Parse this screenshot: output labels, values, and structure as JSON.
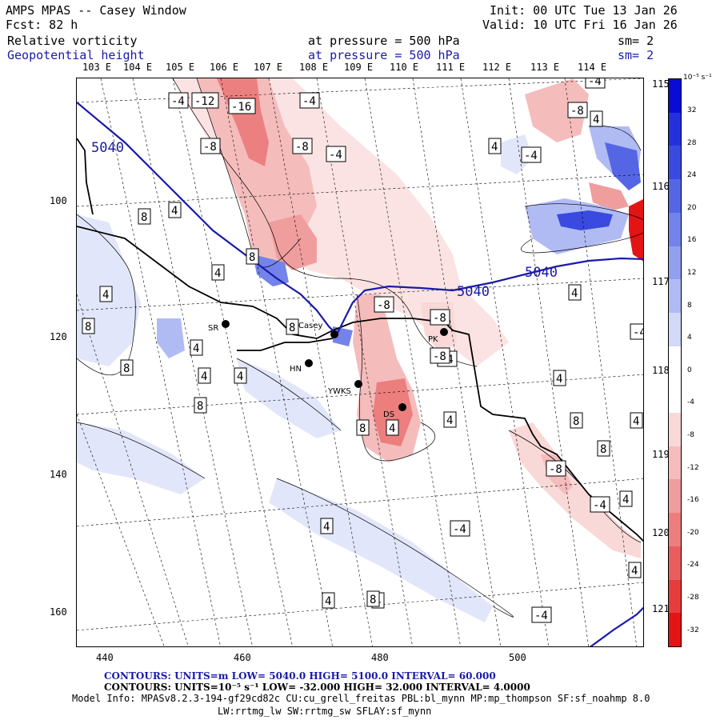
{
  "header": {
    "model_title": "AMPS MPAS -- Casey Window",
    "forecast": "Fcst:   82 h",
    "init": "Init: 00 UTC Tue 13 Jan 26",
    "valid": "Valid: 10 UTC Fri 16 Jan 26",
    "field1_name": "Relative vorticity",
    "field1_level": "at pressure =  500 hPa",
    "field1_sm": "sm= 2",
    "field2_name": "Geopotential height",
    "field2_level": "at pressure =  500 hPa",
    "field2_sm": "sm= 2"
  },
  "colors": {
    "geopotential": "#1a1aa8",
    "positive_vorticity": "#e8141e",
    "negative_vorticity": "#1c24d8",
    "coast": "#000000"
  },
  "longitude_labels_top": [
    "103 E",
    "104 E",
    "105 E",
    "106 E",
    "107 E",
    "108 E",
    "109 E",
    "110 E",
    "111 E",
    "112 E",
    "113 E",
    "114 E"
  ],
  "latitude_labels_right": [
    "115 E",
    "116 E",
    "117 E",
    "118 E",
    "119 E",
    "120 E",
    "121 E"
  ],
  "y_ticks": [
    "100",
    "120",
    "140",
    "160"
  ],
  "x_ticks": [
    "440",
    "460",
    "480",
    "500"
  ],
  "colorbar": {
    "unit": "10⁻⁵ s⁻¹",
    "labels": [
      "32",
      "28",
      "24",
      "20",
      "16",
      "12",
      "8",
      "4",
      "0",
      "-4",
      "-8",
      "-12",
      "-16",
      "-20",
      "-24",
      "-28",
      "-32"
    ],
    "scale": [
      "#0b0bd6",
      "#2530dd",
      "#3a4ae0",
      "#5566e4",
      "#7383ea",
      "#919fee",
      "#b0bbf3",
      "#d2d8f8",
      "#ffffff",
      "#ffffff",
      "#f9d8d8",
      "#f5bcbc",
      "#f09d9d",
      "#ec7e7e",
      "#e85e5e",
      "#e53c3c",
      "#e31414"
    ]
  },
  "stations": [
    {
      "name": "SR"
    },
    {
      "name": "Casey"
    },
    {
      "name": "HN"
    },
    {
      "name": "YWKS"
    },
    {
      "name": "DS"
    },
    {
      "name": "PK"
    }
  ],
  "contour_labels": {
    "height": [
      "5040",
      "5040",
      "5040"
    ],
    "vorticity": [
      "-4",
      "-12",
      "-16",
      "-4",
      "-8",
      "-8",
      "-4",
      "-4",
      "-8",
      "-4",
      "4",
      "8",
      "4",
      "8",
      "4",
      "4",
      "8",
      "8",
      "4",
      "-8",
      "-8",
      "-4",
      "4",
      "4",
      "8",
      "4",
      "4",
      "4",
      "4",
      "4",
      "-4",
      "-4",
      "-8",
      "4",
      "8",
      "-4",
      "4",
      "4",
      "-4",
      "4",
      "8",
      "4",
      "8",
      "8",
      "4",
      "4",
      "-8",
      "8"
    ]
  },
  "footer": {
    "line1_label": "CONTOURS:  UNITS=m  LOW=  5040.0         HIGH=  5100.0        INTERVAL=   60.000",
    "line2_label": "CONTOURS:  UNITS=10⁻⁵ s⁻¹  LOW= -32.000        HIGH=  32.000        INTERVAL=   4.0000",
    "model_info": "Model Info: MPASv8.2.3-194-gf29cd82c CU:cu_grell_freitas PBL:bl_mynn MP:mp_thompson SF:sf_noahmp 8.0",
    "model_info2": "LW:rrtmg_lw SW:rrtmg_sw SFLAY:sf_mynn"
  }
}
